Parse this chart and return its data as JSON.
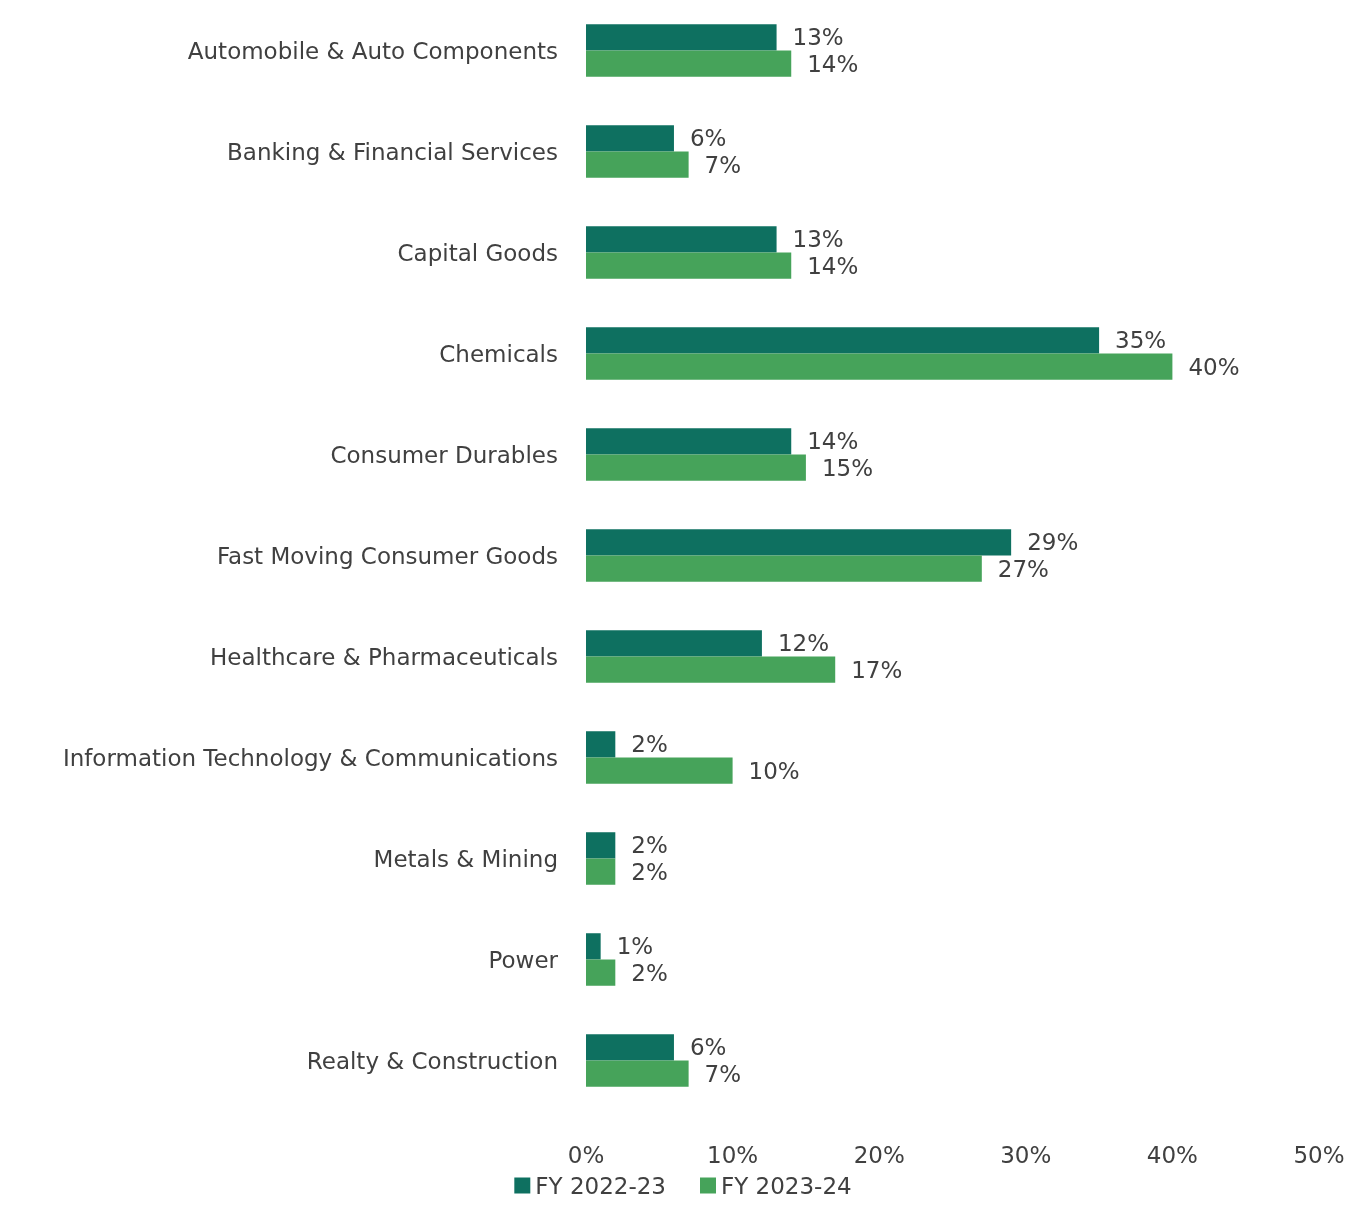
{
  "chart_data": {
    "type": "bar",
    "orientation": "horizontal",
    "categories": [
      "Automobile & Auto Components",
      "Banking & Financial Services",
      "Capital Goods",
      "Chemicals",
      "Consumer Durables",
      "Fast Moving Consumer Goods",
      "Healthcare & Pharmaceuticals",
      "Information Technology & Communications",
      "Metals & Mining",
      "Power",
      "Realty & Construction"
    ],
    "series": [
      {
        "name": "FY 2022-23",
        "color": "#0e7060",
        "values": [
          13,
          6,
          13,
          35,
          14,
          29,
          12,
          2,
          2,
          1,
          6
        ],
        "value_labels": [
          "13%",
          "6%",
          "13%",
          "35%",
          "14%",
          "29%",
          "12%",
          "2%",
          "2%",
          "1%",
          "6%"
        ]
      },
      {
        "name": "FY 2023-24",
        "color": "#46a35a",
        "values": [
          14,
          7,
          14,
          40,
          15,
          27,
          17,
          10,
          2,
          2,
          7
        ],
        "value_labels": [
          "14%",
          "7%",
          "14%",
          "40%",
          "15%",
          "27%",
          "17%",
          "10%",
          "2%",
          "2%",
          "7%"
        ]
      }
    ],
    "xlim": [
      0,
      50
    ],
    "xticks": [
      {
        "value": 0,
        "label": "0%"
      },
      {
        "value": 10,
        "label": "10%"
      },
      {
        "value": 20,
        "label": "20%"
      },
      {
        "value": 30,
        "label": "30%"
      },
      {
        "value": 40,
        "label": "40%"
      },
      {
        "value": 50,
        "label": "50%"
      }
    ],
    "grid": false,
    "legend": "bottom"
  }
}
